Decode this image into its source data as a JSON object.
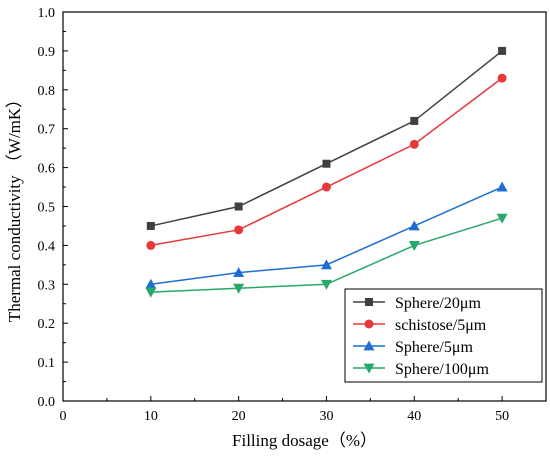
{
  "chart_data": {
    "type": "line",
    "xlabel": "Filling dosage（%）",
    "ylabel": "Thermal conductivity （W/mK）",
    "xlim": [
      0,
      55
    ],
    "ylim": [
      0.0,
      1.0
    ],
    "x_ticks": [
      "0",
      "10",
      "20",
      "30",
      "40",
      "50"
    ],
    "y_ticks": [
      "0.0",
      "0.1",
      "0.2",
      "0.3",
      "0.4",
      "0.5",
      "0.6",
      "0.7",
      "0.8",
      "0.9",
      "1.0"
    ],
    "x": [
      10,
      20,
      30,
      40,
      50
    ],
    "legend_position": "bottom-right",
    "series": [
      {
        "name": "Sphere/20μm",
        "values": [
          0.45,
          0.5,
          0.61,
          0.72,
          0.9
        ],
        "color": "#404040",
        "marker": "square"
      },
      {
        "name": "schistose/5μm",
        "values": [
          0.4,
          0.44,
          0.55,
          0.66,
          0.83
        ],
        "color": "#e8393a",
        "marker": "circle"
      },
      {
        "name": "Sphere/5μm",
        "values": [
          0.3,
          0.33,
          0.35,
          0.45,
          0.55
        ],
        "color": "#1f6fd1",
        "marker": "triangle-up"
      },
      {
        "name": "Sphere/100μm",
        "values": [
          0.28,
          0.29,
          0.3,
          0.4,
          0.47
        ],
        "color": "#27a86b",
        "marker": "triangle-down"
      }
    ]
  }
}
